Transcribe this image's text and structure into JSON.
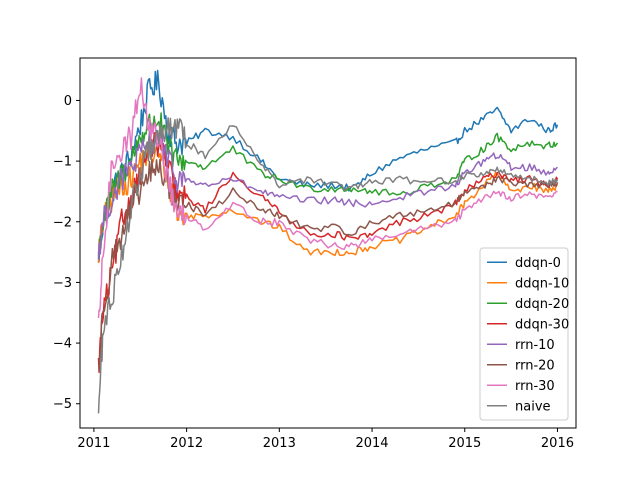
{
  "chart_data": {
    "type": "line",
    "title": "",
    "xlabel": "",
    "ylabel": "",
    "xlim": [
      2010.85,
      2016.2
    ],
    "ylim": [
      -5.4,
      0.7
    ],
    "xticks": [
      2011,
      2012,
      2013,
      2014,
      2015,
      2016
    ],
    "xtick_labels": [
      "2011",
      "2012",
      "2013",
      "2014",
      "2015",
      "2016"
    ],
    "yticks": [
      0,
      -1,
      -2,
      -3,
      -4,
      -5
    ],
    "ytick_labels": [
      "0",
      "−1",
      "−2",
      "−3",
      "−4",
      "−5"
    ],
    "grid": false,
    "legend_position": "lower-right",
    "series": [
      {
        "name": "ddqn-0",
        "color": "#1f77b4",
        "x": [
          2011.05,
          2011.1,
          2011.2,
          2011.3,
          2011.4,
          2011.5,
          2011.6,
          2011.7,
          2011.8,
          2011.9,
          2012.0,
          2012.2,
          2012.5,
          2012.8,
          2013.0,
          2013.3,
          2013.6,
          2013.8,
          2014.0,
          2014.3,
          2014.6,
          2014.9,
          2015.0,
          2015.2,
          2015.35,
          2015.5,
          2015.7,
          2015.9,
          2016.0
        ],
        "y": [
          -2.6,
          -2.0,
          -1.5,
          -1.2,
          -0.9,
          -0.4,
          0.2,
          0.3,
          -0.5,
          -0.7,
          -0.7,
          -0.5,
          -0.6,
          -1.0,
          -1.3,
          -1.4,
          -1.4,
          -1.45,
          -1.2,
          -0.95,
          -0.8,
          -0.7,
          -0.5,
          -0.3,
          -0.15,
          -0.5,
          -0.3,
          -0.5,
          -0.4
        ]
      },
      {
        "name": "ddqn-10",
        "color": "#ff7f0e",
        "x": [
          2011.05,
          2011.1,
          2011.2,
          2011.3,
          2011.4,
          2011.5,
          2011.6,
          2011.7,
          2011.8,
          2011.9,
          2012.0,
          2012.2,
          2012.5,
          2012.8,
          2013.0,
          2013.3,
          2013.6,
          2013.8,
          2014.0,
          2014.3,
          2014.6,
          2014.9,
          2015.0,
          2015.2,
          2015.35,
          2015.5,
          2015.7,
          2015.9,
          2016.0
        ],
        "y": [
          -2.5,
          -2.0,
          -1.6,
          -1.4,
          -1.3,
          -1.0,
          -0.9,
          -0.9,
          -1.3,
          -1.9,
          -1.9,
          -1.9,
          -1.8,
          -2.0,
          -2.1,
          -2.5,
          -2.5,
          -2.5,
          -2.4,
          -2.3,
          -2.1,
          -1.9,
          -1.7,
          -1.4,
          -1.2,
          -1.5,
          -1.4,
          -1.5,
          -1.4
        ]
      },
      {
        "name": "ddqn-20",
        "color": "#2ca02c",
        "x": [
          2011.05,
          2011.1,
          2011.2,
          2011.3,
          2011.4,
          2011.5,
          2011.6,
          2011.7,
          2011.8,
          2011.9,
          2012.0,
          2012.2,
          2012.5,
          2012.8,
          2013.0,
          2013.3,
          2013.6,
          2013.8,
          2014.0,
          2014.3,
          2014.6,
          2014.9,
          2015.0,
          2015.2,
          2015.35,
          2015.5,
          2015.7,
          2015.9,
          2016.0
        ],
        "y": [
          -2.5,
          -2.0,
          -1.5,
          -1.2,
          -1.0,
          -0.6,
          -0.4,
          -0.3,
          -0.8,
          -1.0,
          -1.0,
          -1.1,
          -0.8,
          -1.2,
          -1.3,
          -1.45,
          -1.45,
          -1.45,
          -1.5,
          -1.55,
          -1.4,
          -1.3,
          -1.0,
          -0.8,
          -0.6,
          -0.8,
          -0.7,
          -0.75,
          -0.7
        ]
      },
      {
        "name": "ddqn-30",
        "color": "#d62728",
        "x": [
          2011.05,
          2011.1,
          2011.2,
          2011.3,
          2011.4,
          2011.5,
          2011.6,
          2011.7,
          2011.8,
          2011.9,
          2012.0,
          2012.2,
          2012.5,
          2012.8,
          2013.0,
          2013.3,
          2013.6,
          2013.8,
          2014.0,
          2014.3,
          2014.6,
          2014.9,
          2015.0,
          2015.2,
          2015.35,
          2015.5,
          2015.7,
          2015.9,
          2016.0
        ],
        "y": [
          -4.4,
          -3.5,
          -2.8,
          -2.0,
          -1.6,
          -1.2,
          -0.8,
          -0.7,
          -1.1,
          -1.6,
          -1.6,
          -1.8,
          -1.2,
          -1.6,
          -1.8,
          -2.2,
          -2.2,
          -2.3,
          -2.2,
          -2.0,
          -1.9,
          -1.7,
          -1.5,
          -1.3,
          -1.2,
          -1.3,
          -1.3,
          -1.4,
          -1.3
        ]
      },
      {
        "name": "rrn-10",
        "color": "#9467bd",
        "x": [
          2011.05,
          2011.1,
          2011.2,
          2011.3,
          2011.4,
          2011.5,
          2011.6,
          2011.7,
          2011.8,
          2011.9,
          2012.0,
          2012.2,
          2012.5,
          2012.8,
          2013.0,
          2013.3,
          2013.6,
          2013.8,
          2014.0,
          2014.3,
          2014.6,
          2014.9,
          2015.0,
          2015.2,
          2015.35,
          2015.5,
          2015.7,
          2015.9,
          2016.0
        ],
        "y": [
          -2.5,
          -2.0,
          -1.6,
          -1.3,
          -1.1,
          -0.9,
          -0.7,
          -0.6,
          -1.0,
          -1.3,
          -1.3,
          -1.4,
          -1.3,
          -1.5,
          -1.6,
          -1.65,
          -1.65,
          -1.7,
          -1.7,
          -1.6,
          -1.5,
          -1.4,
          -1.2,
          -1.0,
          -0.9,
          -1.1,
          -1.1,
          -1.2,
          -1.1
        ]
      },
      {
        "name": "rrn-20",
        "color": "#8c564b",
        "x": [
          2011.05,
          2011.1,
          2011.2,
          2011.3,
          2011.4,
          2011.5,
          2011.6,
          2011.7,
          2011.8,
          2011.9,
          2012.0,
          2012.2,
          2012.5,
          2012.8,
          2013.0,
          2013.3,
          2013.6,
          2013.8,
          2014.0,
          2014.3,
          2014.6,
          2014.9,
          2015.0,
          2015.2,
          2015.35,
          2015.5,
          2015.7,
          2015.9,
          2016.0
        ],
        "y": [
          -4.5,
          -3.4,
          -2.6,
          -2.2,
          -1.8,
          -1.5,
          -1.2,
          -1.1,
          -1.4,
          -1.7,
          -1.7,
          -1.9,
          -1.5,
          -1.8,
          -1.9,
          -2.1,
          -2.1,
          -2.2,
          -2.0,
          -1.9,
          -1.8,
          -1.7,
          -1.5,
          -1.4,
          -1.3,
          -1.35,
          -1.4,
          -1.4,
          -1.35
        ]
      },
      {
        "name": "rrn-30",
        "color": "#e377c2",
        "x": [
          2011.05,
          2011.1,
          2011.2,
          2011.3,
          2011.4,
          2011.5,
          2011.6,
          2011.7,
          2011.8,
          2011.9,
          2012.0,
          2012.2,
          2012.5,
          2012.8,
          2013.0,
          2013.3,
          2013.6,
          2013.8,
          2014.0,
          2014.3,
          2014.6,
          2014.9,
          2015.0,
          2015.2,
          2015.35,
          2015.5,
          2015.7,
          2015.9,
          2016.0
        ],
        "y": [
          -3.8,
          -2.5,
          -1.0,
          -0.8,
          -0.6,
          0.3,
          -0.5,
          -0.6,
          -1.3,
          -1.9,
          -1.9,
          -2.1,
          -1.7,
          -2.0,
          -2.0,
          -2.3,
          -2.4,
          -2.4,
          -2.3,
          -2.2,
          -2.1,
          -2.0,
          -1.8,
          -1.6,
          -1.5,
          -1.6,
          -1.55,
          -1.6,
          -1.5
        ]
      },
      {
        "name": "naive",
        "color": "#7f7f7f",
        "x": [
          2011.05,
          2011.1,
          2011.2,
          2011.3,
          2011.4,
          2011.5,
          2011.6,
          2011.7,
          2011.8,
          2011.9,
          2012.0,
          2012.2,
          2012.5,
          2012.8,
          2013.0,
          2013.3,
          2013.6,
          2013.8,
          2014.0,
          2014.3,
          2014.6,
          2014.9,
          2015.0,
          2015.2,
          2015.35,
          2015.5,
          2015.7,
          2015.9,
          2016.0
        ],
        "y": [
          -5.1,
          -3.8,
          -3.2,
          -2.5,
          -1.8,
          -1.2,
          -0.8,
          -0.6,
          -0.5,
          -0.4,
          -0.7,
          -0.9,
          -0.4,
          -1.0,
          -1.4,
          -1.3,
          -1.4,
          -1.45,
          -1.35,
          -1.3,
          -1.35,
          -1.3,
          -1.25,
          -1.2,
          -1.15,
          -1.2,
          -1.3,
          -1.35,
          -1.3
        ]
      }
    ]
  }
}
